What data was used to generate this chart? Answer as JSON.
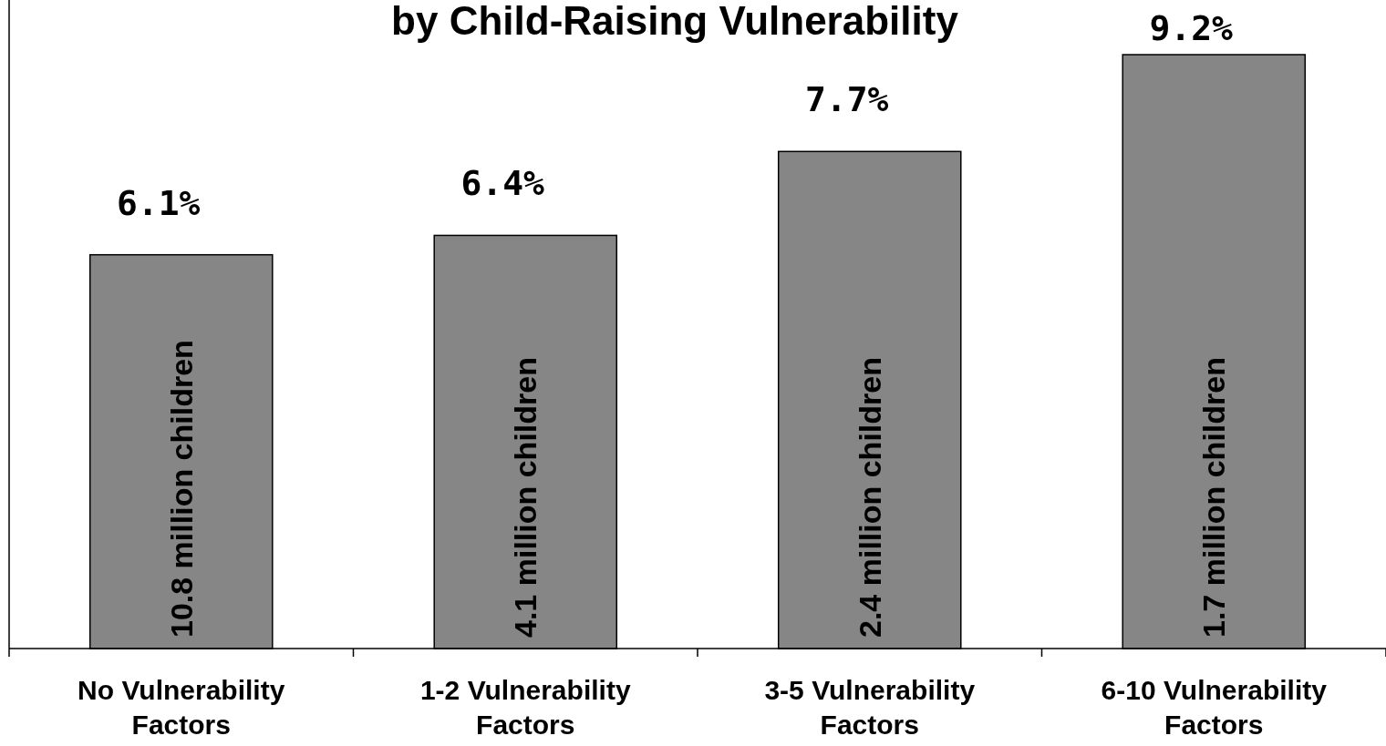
{
  "chart_data": {
    "type": "bar",
    "title": "by Child-Raising Vulnerability",
    "categories": [
      "No Vulnerability Factors",
      "1-2 Vulnerability Factors",
      "3-5 Vulnerability Factors",
      "6-10 Vulnerability Factors"
    ],
    "values": [
      6.1,
      6.4,
      7.7,
      9.2
    ],
    "value_labels": [
      "6.1%",
      "6.4%",
      "7.7%",
      "9.2%"
    ],
    "color": "#868686",
    "annotations": [
      "10.8 million children",
      "4.1 million children",
      "2.4 million children",
      "1.7 million children"
    ]
  }
}
